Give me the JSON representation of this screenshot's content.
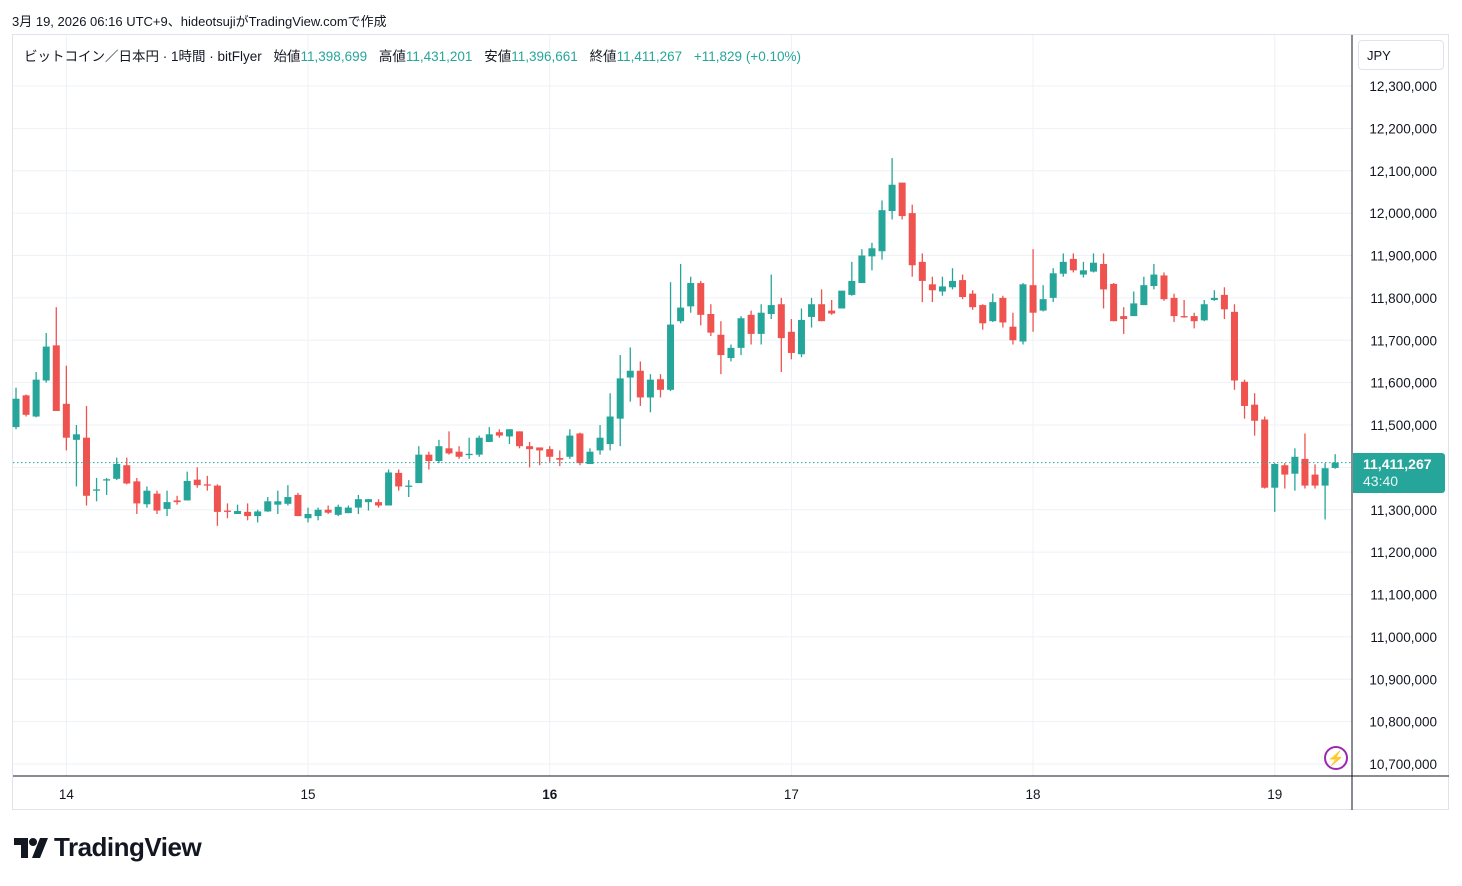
{
  "caption": "3月 19, 2026 06:16 UTC+9、hideotsujiがTradingView.comで作成",
  "legend": {
    "symbol": "ビットコイン／日本円 · 1時間 · bitFlyer",
    "open_label": "始値",
    "open": "11,398,699",
    "high_label": "高値",
    "high": "11,431,201",
    "low_label": "安値",
    "low": "11,396,661",
    "close_label": "終値",
    "close": "11,411,267",
    "change": "+11,829 (+0.10%)"
  },
  "currency_button": "JPY",
  "current_price": {
    "label": "11,411,267",
    "countdown": "43:40",
    "value": 11411.267
  },
  "logo": "TradingView",
  "icons": {
    "alert": "lightning-icon",
    "logo": "tradingview-logo-icon"
  },
  "colors": {
    "up": "#26a69a",
    "down": "#ef5350",
    "grid": "#eef1f6",
    "alert": "#9c27b0"
  },
  "chart_data": {
    "type": "candlestick",
    "title": "ビットコイン／日本円 · 1時間 · bitFlyer",
    "unit": "thousand JPY",
    "interval": "1h",
    "ylim": [
      10700,
      12300
    ],
    "y_ticks": [
      "12,300,000",
      "12,200,000",
      "12,100,000",
      "12,000,000",
      "11,900,000",
      "11,800,000",
      "11,700,000",
      "11,600,000",
      "11,500,000",
      "11,400,000",
      "11,300,000",
      "11,200,000",
      "11,100,000",
      "11,000,000",
      "10,900,000",
      "10,800,000",
      "10,700,000"
    ],
    "x_ticks": [
      {
        "label": "14",
        "index": 5,
        "bold": false
      },
      {
        "label": "15",
        "index": 29,
        "bold": false
      },
      {
        "label": "16",
        "index": 53,
        "bold": true
      },
      {
        "label": "17",
        "index": 77,
        "bold": false
      },
      {
        "label": "18",
        "index": 101,
        "bold": false
      },
      {
        "label": "19",
        "index": 125,
        "bold": false
      }
    ],
    "grid": true,
    "ohlc": [
      [
        11495,
        11588,
        11490,
        11562
      ],
      [
        11570,
        11572,
        11520,
        11524
      ],
      [
        11520,
        11625,
        11518,
        11607
      ],
      [
        11605,
        11717,
        11600,
        11685
      ],
      [
        11688,
        11778,
        11533,
        11533
      ],
      [
        11550,
        11640,
        11440,
        11470
      ],
      [
        11465,
        11500,
        11355,
        11478
      ],
      [
        11470,
        11545,
        11310,
        11333
      ],
      [
        11347,
        11375,
        11320,
        11348
      ],
      [
        11370,
        11375,
        11335,
        11372
      ],
      [
        11373,
        11423,
        11370,
        11408
      ],
      [
        11405,
        11423,
        11360,
        11362
      ],
      [
        11367,
        11375,
        11290,
        11315
      ],
      [
        11313,
        11355,
        11305,
        11345
      ],
      [
        11338,
        11345,
        11290,
        11298
      ],
      [
        11302,
        11345,
        11285,
        11318
      ],
      [
        11322,
        11333,
        11312,
        11318
      ],
      [
        11322,
        11390,
        11322,
        11368
      ],
      [
        11371,
        11400,
        11352,
        11358
      ],
      [
        11360,
        11380,
        11345,
        11358
      ],
      [
        11357,
        11360,
        11262,
        11295
      ],
      [
        11298,
        11315,
        11280,
        11296
      ],
      [
        11290,
        11312,
        11290,
        11297
      ],
      [
        11295,
        11315,
        11275,
        11285
      ],
      [
        11285,
        11300,
        11270,
        11296
      ],
      [
        11296,
        11330,
        11295,
        11320
      ],
      [
        11312,
        11345,
        11290,
        11320
      ],
      [
        11314,
        11358,
        11310,
        11330
      ],
      [
        11335,
        11340,
        11285,
        11285
      ],
      [
        11280,
        11305,
        11270,
        11290
      ],
      [
        11285,
        11305,
        11275,
        11300
      ],
      [
        11300,
        11310,
        11290,
        11293
      ],
      [
        11288,
        11312,
        11285,
        11307
      ],
      [
        11292,
        11310,
        11292,
        11305
      ],
      [
        11305,
        11335,
        11290,
        11325
      ],
      [
        11318,
        11325,
        11298,
        11325
      ],
      [
        11318,
        11325,
        11305,
        11310
      ],
      [
        11310,
        11395,
        11310,
        11388
      ],
      [
        11387,
        11395,
        11345,
        11355
      ],
      [
        11355,
        11370,
        11330,
        11357
      ],
      [
        11363,
        11450,
        11363,
        11430
      ],
      [
        11430,
        11437,
        11395,
        11415
      ],
      [
        11415,
        11465,
        11410,
        11450
      ],
      [
        11445,
        11485,
        11430,
        11433
      ],
      [
        11437,
        11450,
        11420,
        11425
      ],
      [
        11430,
        11470,
        11420,
        11432
      ],
      [
        11430,
        11475,
        11425,
        11470
      ],
      [
        11460,
        11495,
        11460,
        11478
      ],
      [
        11483,
        11490,
        11470,
        11475
      ],
      [
        11473,
        11490,
        11455,
        11490
      ],
      [
        11485,
        11485,
        11445,
        11450
      ],
      [
        11450,
        11460,
        11400,
        11443
      ],
      [
        11447,
        11447,
        11405,
        11440
      ],
      [
        11443,
        11450,
        11413,
        11425
      ],
      [
        11422,
        11440,
        11403,
        11418
      ],
      [
        11425,
        11490,
        11420,
        11475
      ],
      [
        11480,
        11482,
        11405,
        11410
      ],
      [
        11408,
        11445,
        11408,
        11437
      ],
      [
        11440,
        11500,
        11430,
        11470
      ],
      [
        11455,
        11575,
        11440,
        11520
      ],
      [
        11515,
        11665,
        11450,
        11610
      ],
      [
        11612,
        11683,
        11555,
        11628
      ],
      [
        11628,
        11650,
        11545,
        11565
      ],
      [
        11565,
        11620,
        11530,
        11607
      ],
      [
        11608,
        11620,
        11565,
        11583
      ],
      [
        11583,
        11837,
        11580,
        11737
      ],
      [
        11745,
        11880,
        11740,
        11777
      ],
      [
        11780,
        11850,
        11765,
        11835
      ],
      [
        11835,
        11840,
        11735,
        11760
      ],
      [
        11762,
        11785,
        11710,
        11718
      ],
      [
        11713,
        11745,
        11620,
        11665
      ],
      [
        11658,
        11690,
        11650,
        11682
      ],
      [
        11682,
        11757,
        11665,
        11752
      ],
      [
        11760,
        11770,
        11690,
        11715
      ],
      [
        11715,
        11785,
        11690,
        11765
      ],
      [
        11762,
        11855,
        11750,
        11783
      ],
      [
        11785,
        11800,
        11625,
        11705
      ],
      [
        11720,
        11750,
        11655,
        11670
      ],
      [
        11667,
        11775,
        11660,
        11748
      ],
      [
        11755,
        11800,
        11730,
        11785
      ],
      [
        11785,
        11820,
        11745,
        11745
      ],
      [
        11770,
        11795,
        11760,
        11763
      ],
      [
        11775,
        11817,
        11775,
        11817
      ],
      [
        11807,
        11885,
        11805,
        11840
      ],
      [
        11835,
        11915,
        11835,
        11900
      ],
      [
        11898,
        11930,
        11865,
        11917
      ],
      [
        11910,
        12030,
        11890,
        12007
      ],
      [
        12005,
        12130,
        11985,
        12067
      ],
      [
        12072,
        12072,
        11985,
        11993
      ],
      [
        12000,
        12020,
        11850,
        11877
      ],
      [
        11885,
        11905,
        11790,
        11840
      ],
      [
        11832,
        11850,
        11790,
        11818
      ],
      [
        11815,
        11850,
        11805,
        11827
      ],
      [
        11825,
        11870,
        11820,
        11840
      ],
      [
        11842,
        11855,
        11797,
        11802
      ],
      [
        11810,
        11818,
        11772,
        11778
      ],
      [
        11783,
        11785,
        11725,
        11740
      ],
      [
        11745,
        11810,
        11743,
        11790
      ],
      [
        11800,
        11805,
        11730,
        11742
      ],
      [
        11732,
        11765,
        11690,
        11700
      ],
      [
        11697,
        11835,
        11690,
        11832
      ],
      [
        11830,
        11915,
        11720,
        11765
      ],
      [
        11770,
        11830,
        11768,
        11797
      ],
      [
        11800,
        11870,
        11790,
        11858
      ],
      [
        11857,
        11905,
        11850,
        11885
      ],
      [
        11892,
        11905,
        11860,
        11865
      ],
      [
        11855,
        11885,
        11848,
        11865
      ],
      [
        11862,
        11905,
        11860,
        11883
      ],
      [
        11880,
        11905,
        11775,
        11820
      ],
      [
        11833,
        11835,
        11745,
        11745
      ],
      [
        11757,
        11778,
        11715,
        11750
      ],
      [
        11757,
        11815,
        11757,
        11787
      ],
      [
        11783,
        11850,
        11783,
        11830
      ],
      [
        11828,
        11880,
        11820,
        11855
      ],
      [
        11853,
        11860,
        11793,
        11797
      ],
      [
        11800,
        11810,
        11743,
        11757
      ],
      [
        11757,
        11795,
        11753,
        11755
      ],
      [
        11757,
        11765,
        11728,
        11745
      ],
      [
        11747,
        11795,
        11745,
        11785
      ],
      [
        11795,
        11818,
        11793,
        11800
      ],
      [
        11807,
        11825,
        11750,
        11773
      ],
      [
        11767,
        11785,
        11583,
        11605
      ],
      [
        11602,
        11607,
        11515,
        11545
      ],
      [
        11548,
        11575,
        11475,
        11510
      ],
      [
        11513,
        11520,
        11350,
        11352
      ],
      [
        11352,
        11410,
        11295,
        11408
      ],
      [
        11405,
        11410,
        11350,
        11383
      ],
      [
        11385,
        11445,
        11345,
        11425
      ],
      [
        11420,
        11480,
        11350,
        11357
      ],
      [
        11383,
        11407,
        11350,
        11357
      ],
      [
        11357,
        11410,
        11277,
        11398
      ],
      [
        11398.699,
        11431.201,
        11396.661,
        11411.267
      ]
    ]
  }
}
